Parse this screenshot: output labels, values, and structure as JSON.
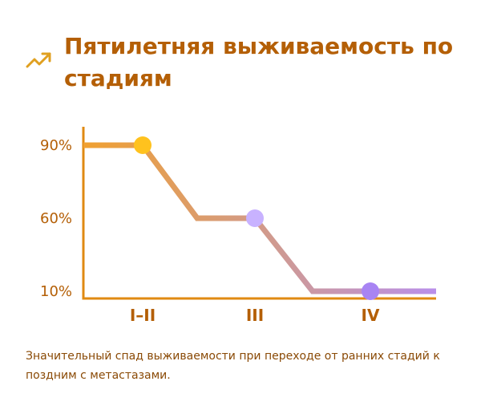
{
  "header": {
    "title": "Пятилетняя выживаемость по стадиям",
    "icon": "trending-up-icon"
  },
  "caption": "Значительный спад выживаемости при переходе от ранних стадий к поздним с метастазами.",
  "colors": {
    "accent": "#b45f06",
    "axis": "#e08a12",
    "line_start": "#f0a030",
    "line_mid": "#cf9a92",
    "line_end": "#b98fea",
    "point_1": "#ffc21e",
    "point_2": "#c8b2ff",
    "point_3": "#a884f3"
  },
  "chart_data": {
    "type": "line",
    "categories": [
      "I–II",
      "III",
      "IV"
    ],
    "values": [
      90,
      60,
      10
    ],
    "y_ticks": [
      {
        "value": 90,
        "label": "90%"
      },
      {
        "value": 60,
        "label": "60%"
      },
      {
        "value": 10,
        "label": "10%"
      }
    ],
    "title": "Пятилетняя выживаемость по стадиям",
    "xlabel": "",
    "ylabel": "",
    "grid": false,
    "legend": "none"
  }
}
